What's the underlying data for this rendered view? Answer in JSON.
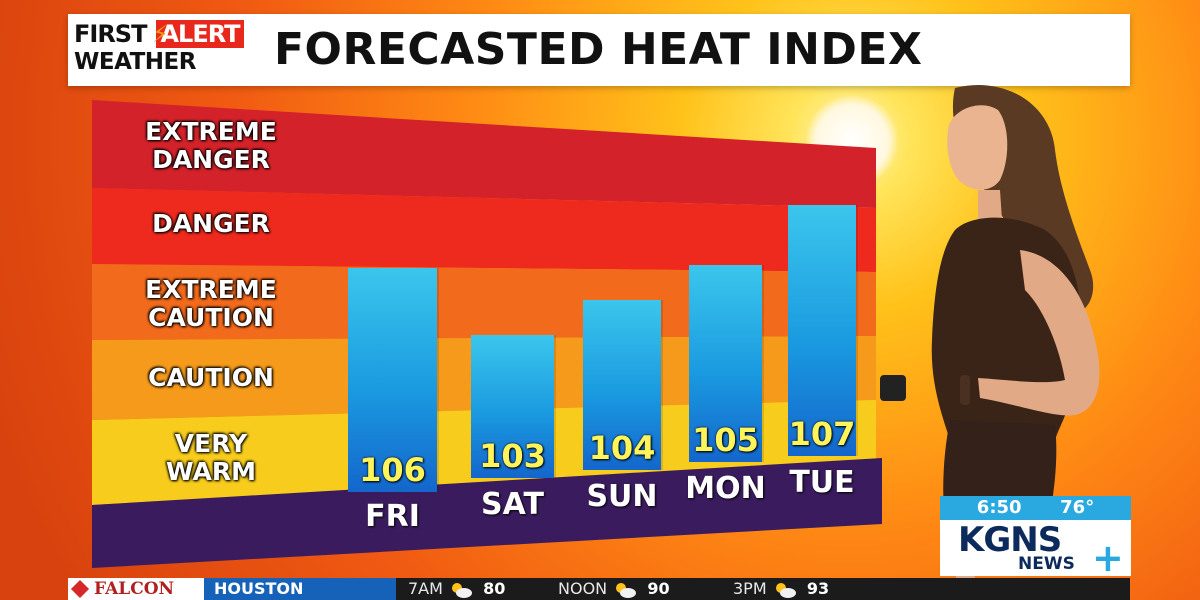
{
  "header": {
    "logo_first": "FIRST",
    "logo_alert": "ALERT",
    "logo_weather": "WEATHER",
    "title": "FORECASTED HEAT INDEX"
  },
  "zones": [
    {
      "label": "EXTREME\nDANGER",
      "line1": "EXTREME",
      "line2": "DANGER",
      "color": "#d4222a"
    },
    {
      "label": "DANGER",
      "line1": "DANGER",
      "line2": "",
      "color": "#ee2a1e"
    },
    {
      "label": "EXTREME\nCAUTION",
      "line1": "EXTREME",
      "line2": "CAUTION",
      "color": "#f26a1c"
    },
    {
      "label": "CAUTION",
      "line1": "CAUTION",
      "line2": "",
      "color": "#f59a1a"
    },
    {
      "label": "VERY\nWARM",
      "line1": "VERY",
      "line2": "WARM",
      "color": "#f7cc1c"
    }
  ],
  "chart_data": {
    "type": "bar",
    "title": "FORECASTED HEAT INDEX",
    "categories": [
      "FRI",
      "SAT",
      "SUN",
      "MON",
      "TUE"
    ],
    "values": [
      106,
      103,
      104,
      105,
      107
    ],
    "bar_color": "#1a9ae0",
    "value_label_color": "#fff45a",
    "baseline_color": "#3a1c5e"
  },
  "clock": {
    "time": "6:50",
    "temp": "76°"
  },
  "station": {
    "name": "KGNS",
    "sub": "NEWS",
    "plus": "+"
  },
  "ticker": {
    "sponsor": "FALCON",
    "city": "HOUSTON",
    "slots": [
      {
        "time": "7AM",
        "icon": "partly-sunny-icon",
        "temp": "80"
      },
      {
        "time": "NOON",
        "icon": "partly-sunny-icon",
        "temp": "90"
      },
      {
        "time": "3PM",
        "icon": "partly-sunny-icon",
        "temp": "93"
      }
    ]
  }
}
